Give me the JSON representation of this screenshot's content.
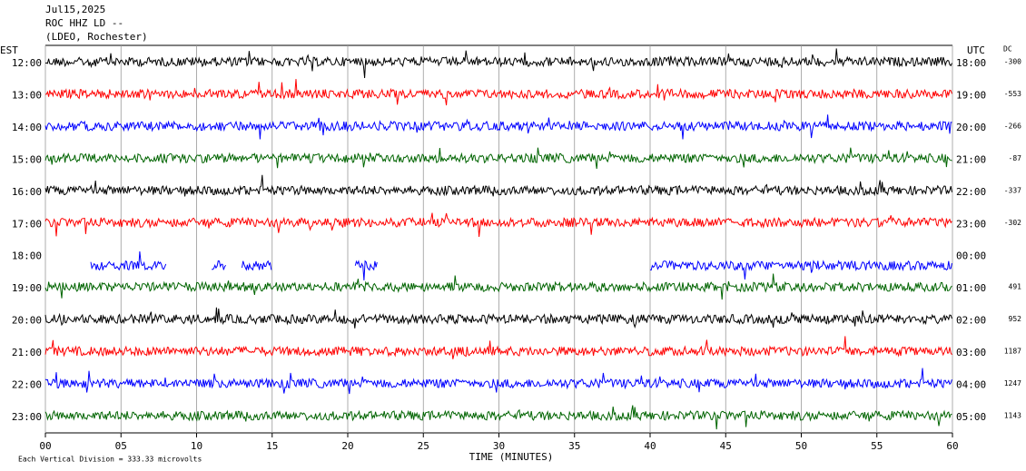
{
  "chart_data": {
    "type": "seismogram",
    "title_lines": [
      "Jul15,2025",
      "ROC HHZ LD --",
      "(LDEO, Rochester)"
    ],
    "left_label": "EST",
    "right_label": "UTC",
    "dc_label": "DC",
    "xlabel": "TIME (MINUTES)",
    "footer": "Each Vertical Division =  333.33 microvolts",
    "xlim": [
      0,
      60
    ],
    "xticks": [
      {
        "value": 0,
        "label": "00"
      },
      {
        "value": 5,
        "label": "05"
      },
      10,
      15,
      20,
      25,
      30,
      35,
      40,
      45,
      50,
      55,
      60
    ],
    "rows": [
      {
        "est": "12:00",
        "utc": "18:00",
        "dc": -300,
        "color": "#000000"
      },
      {
        "est": "13:00",
        "utc": "19:00",
        "dc": -553,
        "color": "#ff0000"
      },
      {
        "est": "14:00",
        "utc": "20:00",
        "dc": -266,
        "color": "#0000ff"
      },
      {
        "est": "15:00",
        "utc": "21:00",
        "dc": -87,
        "color": "#006400"
      },
      {
        "est": "16:00",
        "utc": "22:00",
        "dc": -337,
        "color": "#000000"
      },
      {
        "est": "17:00",
        "utc": "23:00",
        "dc": -302,
        "color": "#ff0000"
      },
      {
        "est": "18:00",
        "utc": "00:00",
        "color": "#0000ff",
        "segments": [
          [
            3,
            8
          ],
          [
            11,
            12
          ],
          [
            13,
            15
          ],
          [
            20.5,
            22
          ],
          [
            40,
            60
          ]
        ]
      },
      {
        "est": "19:00",
        "utc": "01:00",
        "dc": 491,
        "color": "#006400"
      },
      {
        "est": "20:00",
        "utc": "02:00",
        "dc": 952,
        "color": "#000000"
      },
      {
        "est": "21:00",
        "utc": "03:00",
        "dc": 1187,
        "color": "#ff0000"
      },
      {
        "est": "22:00",
        "utc": "04:00",
        "dc": 1247,
        "color": "#0000ff"
      },
      {
        "est": "23:00",
        "utc": "05:00",
        "dc": 1143,
        "color": "#006400"
      }
    ]
  }
}
